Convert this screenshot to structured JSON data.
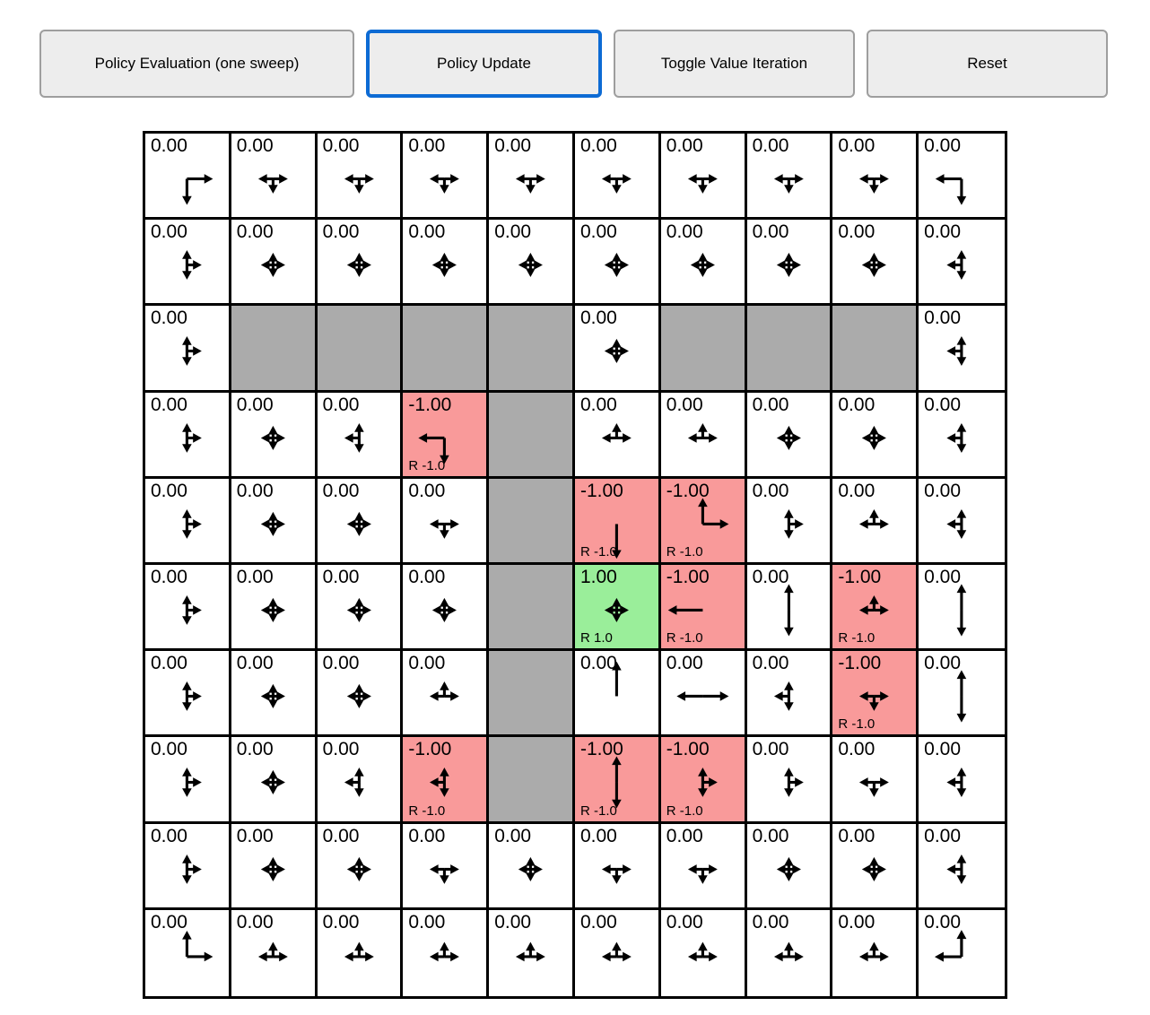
{
  "toolbar": {
    "buttons": [
      {
        "label": "Policy Evaluation (one sweep)",
        "active": false
      },
      {
        "label": "Policy Update",
        "active": true
      },
      {
        "label": "Toggle Value Iteration",
        "active": false
      },
      {
        "label": "Reset",
        "active": false
      }
    ]
  },
  "colors": {
    "wall": "#ababab",
    "negative": "#f99a9a",
    "positive": "#9aee9a",
    "active_border": "#0d6bd4",
    "button_bg": "#ededed",
    "button_border": "#9e9e9e"
  },
  "grid": {
    "rows": 10,
    "cols": 10,
    "legend": {
      "policy_key": "p is the set of policy arrow directions: u=up, d=down, l=left, r=right",
      "bg_key": "bg: white=normal state, wall=blocked, neg=negative reward, pos=positive reward"
    },
    "cells": [
      [
        {
          "v": "0.00",
          "p": "dr",
          "bg": "white"
        },
        {
          "v": "0.00",
          "p": "dlr",
          "bg": "white"
        },
        {
          "v": "0.00",
          "p": "dlr",
          "bg": "white"
        },
        {
          "v": "0.00",
          "p": "dlr",
          "bg": "white"
        },
        {
          "v": "0.00",
          "p": "dlr",
          "bg": "white"
        },
        {
          "v": "0.00",
          "p": "dlr",
          "bg": "white"
        },
        {
          "v": "0.00",
          "p": "dlr",
          "bg": "white"
        },
        {
          "v": "0.00",
          "p": "dlr",
          "bg": "white"
        },
        {
          "v": "0.00",
          "p": "dlr",
          "bg": "white"
        },
        {
          "v": "0.00",
          "p": "dl",
          "bg": "white"
        }
      ],
      [
        {
          "v": "0.00",
          "p": "udr",
          "bg": "white"
        },
        {
          "v": "0.00",
          "p": "udlr",
          "bg": "white"
        },
        {
          "v": "0.00",
          "p": "udlr",
          "bg": "white"
        },
        {
          "v": "0.00",
          "p": "udlr",
          "bg": "white"
        },
        {
          "v": "0.00",
          "p": "udlr",
          "bg": "white"
        },
        {
          "v": "0.00",
          "p": "udlr",
          "bg": "white"
        },
        {
          "v": "0.00",
          "p": "udlr",
          "bg": "white"
        },
        {
          "v": "0.00",
          "p": "udlr",
          "bg": "white"
        },
        {
          "v": "0.00",
          "p": "udlr",
          "bg": "white"
        },
        {
          "v": "0.00",
          "p": "udl",
          "bg": "white"
        }
      ],
      [
        {
          "v": "0.00",
          "p": "udr",
          "bg": "white"
        },
        {
          "bg": "wall"
        },
        {
          "bg": "wall"
        },
        {
          "bg": "wall"
        },
        {
          "bg": "wall"
        },
        {
          "v": "0.00",
          "p": "udlr",
          "bg": "white"
        },
        {
          "bg": "wall"
        },
        {
          "bg": "wall"
        },
        {
          "bg": "wall"
        },
        {
          "v": "0.00",
          "p": "udl",
          "bg": "white"
        }
      ],
      [
        {
          "v": "0.00",
          "p": "udr",
          "bg": "white"
        },
        {
          "v": "0.00",
          "p": "udlr",
          "bg": "white"
        },
        {
          "v": "0.00",
          "p": "udl",
          "bg": "white"
        },
        {
          "v": "-1.00",
          "p": "dl",
          "bg": "neg",
          "r": "R -1.0"
        },
        {
          "bg": "wall"
        },
        {
          "v": "0.00",
          "p": "ulr",
          "bg": "white"
        },
        {
          "v": "0.00",
          "p": "ulr",
          "bg": "white"
        },
        {
          "v": "0.00",
          "p": "udlr",
          "bg": "white"
        },
        {
          "v": "0.00",
          "p": "udlr",
          "bg": "white"
        },
        {
          "v": "0.00",
          "p": "udl",
          "bg": "white"
        }
      ],
      [
        {
          "v": "0.00",
          "p": "udr",
          "bg": "white"
        },
        {
          "v": "0.00",
          "p": "udlr",
          "bg": "white"
        },
        {
          "v": "0.00",
          "p": "udlr",
          "bg": "white"
        },
        {
          "v": "0.00",
          "p": "dlr",
          "bg": "white"
        },
        {
          "bg": "wall"
        },
        {
          "v": "-1.00",
          "p": "d",
          "bg": "neg",
          "r": "R -1.0"
        },
        {
          "v": "-1.00",
          "p": "ur",
          "bg": "neg",
          "r": "R -1.0"
        },
        {
          "v": "0.00",
          "p": "udr",
          "bg": "white"
        },
        {
          "v": "0.00",
          "p": "ulr",
          "bg": "white"
        },
        {
          "v": "0.00",
          "p": "udl",
          "bg": "white"
        }
      ],
      [
        {
          "v": "0.00",
          "p": "udr",
          "bg": "white"
        },
        {
          "v": "0.00",
          "p": "udlr",
          "bg": "white"
        },
        {
          "v": "0.00",
          "p": "udlr",
          "bg": "white"
        },
        {
          "v": "0.00",
          "p": "udlr",
          "bg": "white"
        },
        {
          "bg": "wall"
        },
        {
          "v": "1.00",
          "p": "udlr",
          "bg": "pos",
          "r": "R 1.0"
        },
        {
          "v": "-1.00",
          "p": "l",
          "bg": "neg",
          "r": "R -1.0"
        },
        {
          "v": "0.00",
          "p": "ud",
          "bg": "white"
        },
        {
          "v": "-1.00",
          "p": "ulr",
          "bg": "neg",
          "r": "R -1.0"
        },
        {
          "v": "0.00",
          "p": "ud",
          "bg": "white"
        }
      ],
      [
        {
          "v": "0.00",
          "p": "udr",
          "bg": "white"
        },
        {
          "v": "0.00",
          "p": "udlr",
          "bg": "white"
        },
        {
          "v": "0.00",
          "p": "udlr",
          "bg": "white"
        },
        {
          "v": "0.00",
          "p": "ulr",
          "bg": "white"
        },
        {
          "bg": "wall"
        },
        {
          "v": "0.00",
          "p": "u",
          "bg": "white"
        },
        {
          "v": "0.00",
          "p": "lr",
          "bg": "white"
        },
        {
          "v": "0.00",
          "p": "udl",
          "bg": "white"
        },
        {
          "v": "-1.00",
          "p": "dlr",
          "bg": "neg",
          "r": "R -1.0"
        },
        {
          "v": "0.00",
          "p": "ud",
          "bg": "white"
        }
      ],
      [
        {
          "v": "0.00",
          "p": "udr",
          "bg": "white"
        },
        {
          "v": "0.00",
          "p": "udlr",
          "bg": "white"
        },
        {
          "v": "0.00",
          "p": "udl",
          "bg": "white"
        },
        {
          "v": "-1.00",
          "p": "udl",
          "bg": "neg",
          "r": "R -1.0"
        },
        {
          "bg": "wall"
        },
        {
          "v": "-1.00",
          "p": "ud",
          "bg": "neg",
          "r": "R -1.0"
        },
        {
          "v": "-1.00",
          "p": "udr",
          "bg": "neg",
          "r": "R -1.0"
        },
        {
          "v": "0.00",
          "p": "udr",
          "bg": "white"
        },
        {
          "v": "0.00",
          "p": "dlr",
          "bg": "white"
        },
        {
          "v": "0.00",
          "p": "udl",
          "bg": "white"
        }
      ],
      [
        {
          "v": "0.00",
          "p": "udr",
          "bg": "white"
        },
        {
          "v": "0.00",
          "p": "udlr",
          "bg": "white"
        },
        {
          "v": "0.00",
          "p": "udlr",
          "bg": "white"
        },
        {
          "v": "0.00",
          "p": "dlr",
          "bg": "white"
        },
        {
          "v": "0.00",
          "p": "udlr",
          "bg": "white"
        },
        {
          "v": "0.00",
          "p": "dlr",
          "bg": "white"
        },
        {
          "v": "0.00",
          "p": "dlr",
          "bg": "white"
        },
        {
          "v": "0.00",
          "p": "udlr",
          "bg": "white"
        },
        {
          "v": "0.00",
          "p": "udlr",
          "bg": "white"
        },
        {
          "v": "0.00",
          "p": "udl",
          "bg": "white"
        }
      ],
      [
        {
          "v": "0.00",
          "p": "ur",
          "bg": "white"
        },
        {
          "v": "0.00",
          "p": "ulr",
          "bg": "white"
        },
        {
          "v": "0.00",
          "p": "ulr",
          "bg": "white"
        },
        {
          "v": "0.00",
          "p": "ulr",
          "bg": "white"
        },
        {
          "v": "0.00",
          "p": "ulr",
          "bg": "white"
        },
        {
          "v": "0.00",
          "p": "ulr",
          "bg": "white"
        },
        {
          "v": "0.00",
          "p": "ulr",
          "bg": "white"
        },
        {
          "v": "0.00",
          "p": "ulr",
          "bg": "white"
        },
        {
          "v": "0.00",
          "p": "ulr",
          "bg": "white"
        },
        {
          "v": "0.00",
          "p": "ul",
          "bg": "white"
        }
      ]
    ]
  }
}
